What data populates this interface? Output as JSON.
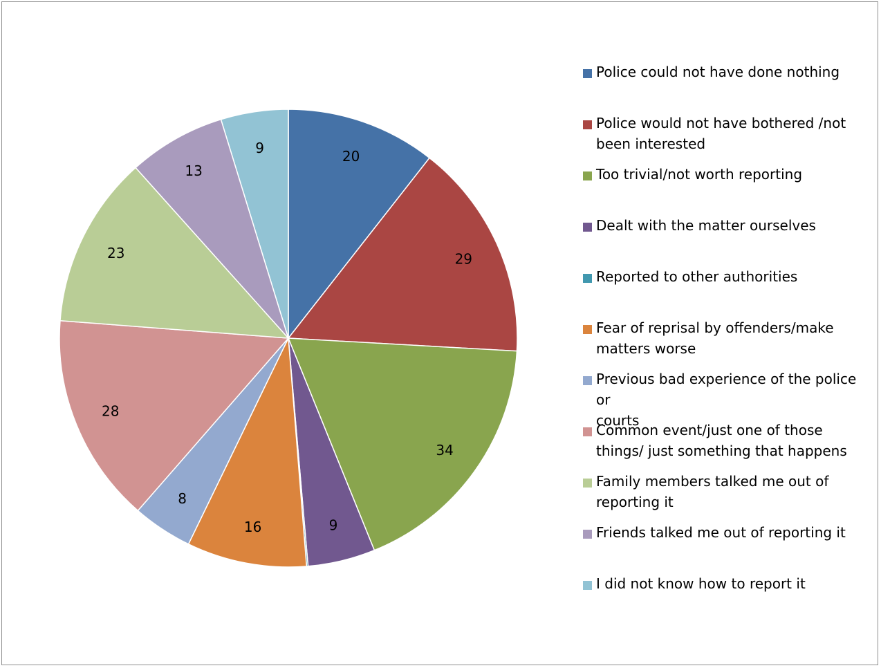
{
  "chart_data": {
    "type": "pie",
    "title": "",
    "start_angle_deg": 0,
    "direction": "clockwise",
    "legend_position": "right",
    "categories": [
      "Police could not have done nothing",
      "Police would not have bothered /not been interested",
      "Too trivial/not worth reporting",
      "Dealt with the matter ourselves",
      "Reported to other authorities",
      "Fear of reprisal by offenders/make matters worse",
      "Previous bad experience of the police or courts",
      "Common event/just one of those things/ just something that happens",
      "Family members talked me out of reporting it",
      "Friends talked me out of reporting it",
      "I did not know how to report it"
    ],
    "legend_lines": [
      [
        "Police could not have done nothing"
      ],
      [
        "Police would not have bothered /not",
        "been interested"
      ],
      [
        "Too trivial/not worth reporting"
      ],
      [
        "Dealt with the matter ourselves"
      ],
      [
        "Reported to other authorities"
      ],
      [
        "Fear of reprisal by offenders/make",
        "matters worse"
      ],
      [
        "Previous bad experience of the police or",
        "courts"
      ],
      [
        "Common event/just one of those",
        "things/ just something that happens"
      ],
      [
        "Family members talked me out of",
        "reporting it"
      ],
      [
        "Friends talked me out of reporting it"
      ],
      [
        "I did not know how to report it"
      ]
    ],
    "values": [
      20,
      29,
      34,
      9,
      0.2,
      16,
      8,
      28,
      23,
      13,
      9
    ],
    "data_labels": [
      "20",
      "29",
      "34",
      "9",
      "",
      "16",
      "8",
      "28",
      "23",
      "13",
      "9"
    ],
    "colors": [
      "#4572a7",
      "#aa4643",
      "#89a54e",
      "#71588f",
      "#4198af",
      "#db843d",
      "#93a9cf",
      "#d19392",
      "#b9cd96",
      "#a99bbd",
      "#92c3d4"
    ]
  }
}
